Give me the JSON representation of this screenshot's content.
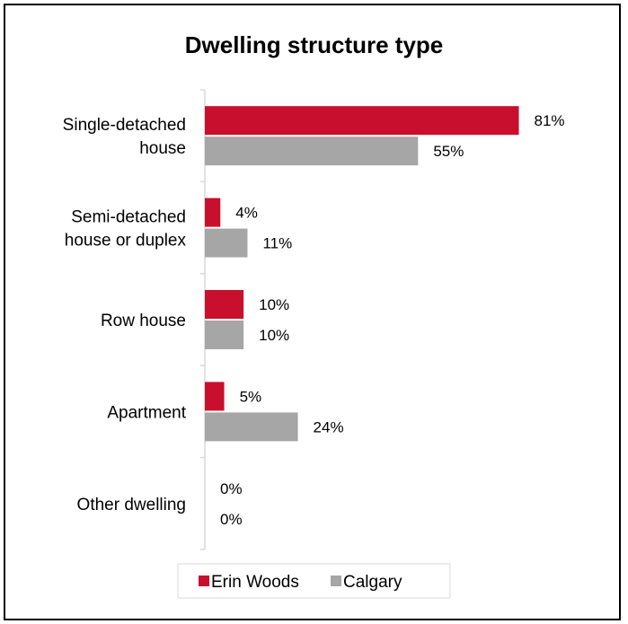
{
  "chart_data": {
    "type": "bar",
    "orientation": "horizontal",
    "title": "Dwelling structure type",
    "categories": [
      [
        "Single-detached",
        "house"
      ],
      [
        "Semi-detached",
        "house or duplex"
      ],
      [
        "Row house"
      ],
      [
        "Apartment"
      ],
      [
        "Other dwelling"
      ]
    ],
    "series": [
      {
        "name": "Erin Woods",
        "color": "#c8102e",
        "values": [
          81,
          4,
          10,
          5,
          0
        ],
        "labels": [
          "81%",
          "4%",
          "10%",
          "5%",
          "0%"
        ]
      },
      {
        "name": "Calgary",
        "color": "#a6a6a6",
        "values": [
          55,
          11,
          10,
          24,
          0
        ],
        "labels": [
          "55%",
          "11%",
          "10%",
          "24%",
          "0%"
        ]
      }
    ],
    "xlim": [
      0,
      100
    ],
    "grid": false,
    "legend_position": "bottom"
  }
}
